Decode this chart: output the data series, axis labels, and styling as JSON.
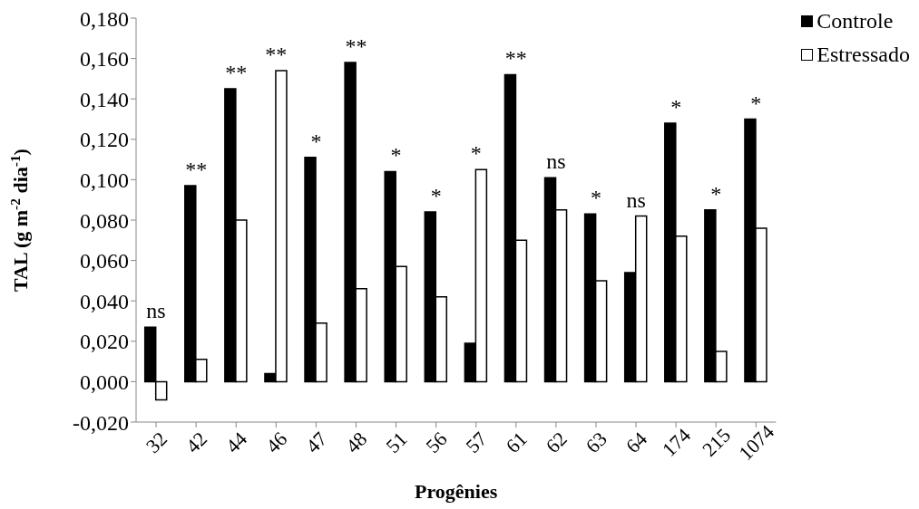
{
  "chart_data": {
    "type": "bar",
    "xlabel": "Progênies",
    "ylabel": "TAL (g m$^{-2}$ dia$^{-1}$)",
    "categories": [
      "32",
      "42",
      "44",
      "46",
      "47",
      "48",
      "51",
      "56",
      "57",
      "61",
      "62",
      "63",
      "64",
      "174",
      "215",
      "1074"
    ],
    "series": [
      {
        "name": "Controle",
        "color": "#000000",
        "values": [
          0.027,
          0.097,
          0.145,
          0.004,
          0.111,
          0.158,
          0.104,
          0.084,
          0.019,
          0.152,
          0.101,
          0.083,
          0.054,
          0.128,
          0.085,
          0.13
        ]
      },
      {
        "name": "Estressado",
        "color": "#ffffff",
        "values": [
          -0.009,
          0.011,
          0.08,
          0.154,
          0.029,
          0.046,
          0.057,
          0.042,
          0.105,
          0.07,
          0.085,
          0.05,
          0.082,
          0.072,
          0.015,
          0.076
        ]
      }
    ],
    "ylim": [
      -0.02,
      0.18
    ],
    "yticks": [
      {
        "value": -0.02,
        "label": "-0,020"
      },
      {
        "value": 0,
        "label": "0,000"
      },
      {
        "value": 0.02,
        "label": "0,020"
      },
      {
        "value": 0.04,
        "label": "0,040"
      },
      {
        "value": 0.06,
        "label": "0,060"
      },
      {
        "value": 0.08,
        "label": "0,080"
      },
      {
        "value": 0.1,
        "label": "0,100"
      },
      {
        "value": 0.12,
        "label": "0,120"
      },
      {
        "value": 0.14,
        "label": "0,140"
      },
      {
        "value": 0.16,
        "label": "0,160"
      },
      {
        "value": 0.18,
        "label": "0,180"
      }
    ],
    "annotations": [
      {
        "text": "ns",
        "x": "32",
        "y": 0.027
      },
      {
        "text": "**",
        "x": "42",
        "y": 0.097
      },
      {
        "text": "**",
        "x": "44",
        "y": 0.145
      },
      {
        "text": "**",
        "x": "46",
        "y": 0.154
      },
      {
        "text": "*",
        "x": "47",
        "y": 0.111
      },
      {
        "text": "**",
        "x": "48",
        "y": 0.158
      },
      {
        "text": "*",
        "x": "51",
        "y": 0.104
      },
      {
        "text": "*",
        "x": "56",
        "y": 0.084
      },
      {
        "text": "*",
        "x": "57",
        "y": 0.105
      },
      {
        "text": "**",
        "x": "61",
        "y": 0.152
      },
      {
        "text": "ns",
        "x": "62",
        "y": 0.101
      },
      {
        "text": "*",
        "x": "63",
        "y": 0.083
      },
      {
        "text": "ns",
        "x": "64",
        "y": 0.082
      },
      {
        "text": "*",
        "x": "174",
        "y": 0.128
      },
      {
        "text": "*",
        "x": "215",
        "y": 0.085
      },
      {
        "text": "*",
        "x": "1074",
        "y": 0.13
      }
    ],
    "grid": false,
    "legend": "top right"
  }
}
